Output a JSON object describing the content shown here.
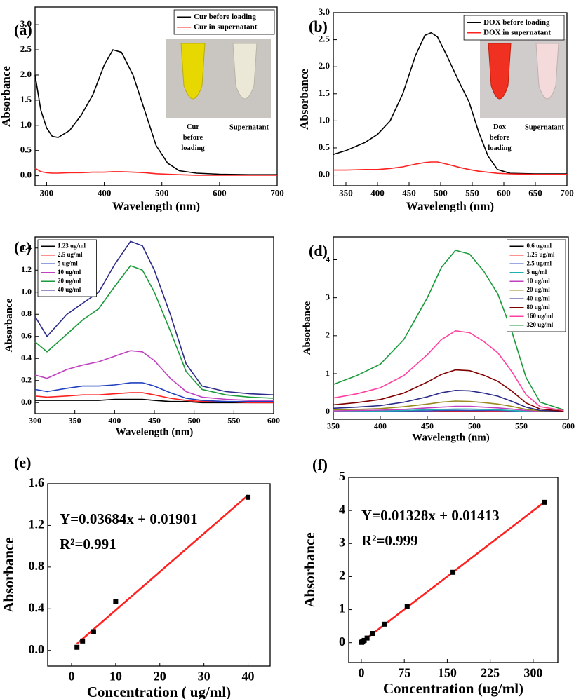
{
  "chart_data": [
    {
      "type": "line",
      "label": "(a)",
      "xlabel": "Wavelength (nm)",
      "ylabel": "Absorbance",
      "xlim": [
        280,
        700
      ],
      "ylim": [
        -0.2,
        3.35
      ],
      "xticks": [
        300,
        400,
        500,
        600,
        700
      ],
      "yticks": [
        {
          "value": 0,
          "label": "0.0"
        },
        {
          "value": 0.5,
          "label": "0.5"
        },
        {
          "value": 1,
          "label": "1.0"
        },
        {
          "value": 1.5,
          "label": "1.5"
        },
        {
          "value": 2,
          "label": "2.0"
        },
        {
          "value": 2.5,
          "label": "2.5"
        },
        {
          "value": 3,
          "label": "3.0"
        }
      ],
      "legend": "upper right",
      "x": [
        280,
        290,
        300,
        310,
        320,
        340,
        360,
        380,
        400,
        415,
        430,
        450,
        470,
        490,
        510,
        530,
        560,
        600,
        650,
        700
      ],
      "series": [
        {
          "name": "Cur before loading",
          "color": "#000000",
          "values": [
            2.0,
            1.3,
            0.95,
            0.78,
            0.76,
            0.9,
            1.2,
            1.6,
            2.2,
            2.5,
            2.45,
            2.0,
            1.3,
            0.6,
            0.25,
            0.1,
            0.05,
            0.03,
            0.02,
            0.02
          ]
        },
        {
          "name": "Cur in supernatant",
          "color": "#ff2020",
          "values": [
            0.15,
            0.08,
            0.06,
            0.05,
            0.05,
            0.06,
            0.06,
            0.07,
            0.07,
            0.08,
            0.08,
            0.07,
            0.06,
            0.04,
            0.03,
            0.02,
            0.01,
            0.01,
            0.01,
            0.01
          ]
        }
      ],
      "inset_labels": [
        "Cur before loading",
        "Supernatant"
      ]
    },
    {
      "type": "line",
      "label": "(b)",
      "xlabel": "Wavelength (nm)",
      "ylabel": "Absorbance",
      "xlim": [
        330,
        700
      ],
      "ylim": [
        -0.2,
        3.0
      ],
      "xticks": [
        350,
        400,
        450,
        500,
        550,
        600,
        650,
        700
      ],
      "yticks": [
        {
          "value": 0,
          "label": "0.0"
        },
        {
          "value": 0.5,
          "label": "0.5"
        },
        {
          "value": 1,
          "label": "1.0"
        },
        {
          "value": 1.5,
          "label": "1.5"
        },
        {
          "value": 2,
          "label": "2.0"
        },
        {
          "value": 2.5,
          "label": "2.5"
        },
        {
          "value": 3,
          "label": "3.0"
        }
      ],
      "legend": "upper right",
      "x": [
        330,
        350,
        380,
        400,
        420,
        440,
        460,
        475,
        485,
        495,
        510,
        530,
        545,
        560,
        575,
        590,
        610,
        650,
        700
      ],
      "series": [
        {
          "name": "DOX before loading",
          "color": "#000000",
          "values": [
            0.38,
            0.45,
            0.6,
            0.75,
            1.0,
            1.5,
            2.2,
            2.58,
            2.63,
            2.55,
            2.2,
            1.7,
            1.35,
            0.8,
            0.35,
            0.1,
            0.03,
            0.02,
            0.02
          ]
        },
        {
          "name": "DOX in supernatant",
          "color": "#ff2020",
          "values": [
            0.09,
            0.09,
            0.1,
            0.1,
            0.12,
            0.15,
            0.2,
            0.23,
            0.24,
            0.24,
            0.2,
            0.14,
            0.1,
            0.07,
            0.05,
            0.03,
            0.02,
            0.01,
            0.01
          ]
        }
      ],
      "inset_labels": [
        "Dox before loading",
        "Supernatant"
      ]
    },
    {
      "type": "line",
      "label": "(c)",
      "xlabel": "Wavelength (nm)",
      "ylabel": "Absorbance",
      "xlim": [
        300,
        600
      ],
      "ylim": [
        -0.1,
        1.5
      ],
      "xticks": [
        300,
        350,
        400,
        450,
        500,
        550,
        600
      ],
      "yticks": [
        {
          "value": 0,
          "label": "0.0"
        },
        {
          "value": 0.2,
          "label": "0.2"
        },
        {
          "value": 0.4,
          "label": "0.4"
        },
        {
          "value": 0.6,
          "label": "0.6"
        },
        {
          "value": 0.8,
          "label": "0.8"
        },
        {
          "value": 1,
          "label": "1.0"
        },
        {
          "value": 1.2,
          "label": "1.2"
        },
        {
          "value": 1.4,
          "label": "1.4"
        }
      ],
      "legend": "upper left",
      "x": [
        300,
        315,
        340,
        360,
        380,
        400,
        420,
        435,
        450,
        470,
        490,
        510,
        540,
        570,
        600
      ],
      "series": [
        {
          "name": "1.23 ug/ml",
          "color": "#000000",
          "values": [
            0.02,
            0.02,
            0.02,
            0.02,
            0.02,
            0.03,
            0.03,
            0.03,
            0.02,
            0.01,
            0.01,
            0,
            0,
            0,
            0
          ]
        },
        {
          "name": "2.5 ug/ml",
          "color": "#ff2020",
          "values": [
            0.06,
            0.05,
            0.06,
            0.07,
            0.07,
            0.08,
            0.09,
            0.09,
            0.07,
            0.04,
            0.02,
            0.01,
            0.01,
            0,
            0
          ]
        },
        {
          "name": "5 ug/ml",
          "color": "#2040c0",
          "values": [
            0.12,
            0.1,
            0.13,
            0.15,
            0.15,
            0.16,
            0.18,
            0.18,
            0.15,
            0.09,
            0.04,
            0.02,
            0.01,
            0.01,
            0.01
          ]
        },
        {
          "name": "10 ug/ml",
          "color": "#c040c0",
          "values": [
            0.25,
            0.22,
            0.3,
            0.34,
            0.37,
            0.42,
            0.47,
            0.46,
            0.38,
            0.22,
            0.1,
            0.05,
            0.03,
            0.02,
            0.02
          ]
        },
        {
          "name": "20 ug/ml",
          "color": "#1a9a3a",
          "values": [
            0.55,
            0.46,
            0.62,
            0.75,
            0.85,
            1.05,
            1.24,
            1.2,
            1.0,
            0.65,
            0.28,
            0.12,
            0.07,
            0.05,
            0.04
          ]
        },
        {
          "name": "40 ug/ml",
          "color": "#2a2a8a",
          "values": [
            0.78,
            0.6,
            0.8,
            0.9,
            1.0,
            1.25,
            1.46,
            1.42,
            1.2,
            0.8,
            0.35,
            0.15,
            0.1,
            0.08,
            0.07
          ]
        }
      ]
    },
    {
      "type": "line",
      "label": "(d)",
      "xlabel": "Wavelength (nm)",
      "ylabel": "Absorbance",
      "xlim": [
        350,
        600
      ],
      "ylim": [
        -0.2,
        4.6
      ],
      "xticks": [
        350,
        400,
        450,
        500,
        550,
        600
      ],
      "yticks": [
        0,
        1,
        2,
        3,
        4
      ],
      "legend": "upper right",
      "x": [
        350,
        375,
        400,
        425,
        450,
        465,
        480,
        495,
        510,
        525,
        540,
        555,
        570,
        595
      ],
      "series": [
        {
          "name": "0.6 ug/ml",
          "color": "#000000",
          "values": [
            0,
            0,
            0,
            0,
            0.01,
            0.01,
            0.01,
            0.01,
            0.01,
            0.01,
            0,
            0,
            0,
            0
          ]
        },
        {
          "name": "1.25 ug/ml",
          "color": "#ff2020",
          "values": [
            0,
            0,
            0.01,
            0.01,
            0.01,
            0.02,
            0.02,
            0.02,
            0.02,
            0.01,
            0.01,
            0,
            0,
            0
          ]
        },
        {
          "name": "2.5 ug/ml",
          "color": "#3050c0",
          "values": [
            0.01,
            0.01,
            0.01,
            0.02,
            0.02,
            0.03,
            0.035,
            0.03,
            0.03,
            0.03,
            0.02,
            0.01,
            0,
            0
          ]
        },
        {
          "name": "5 ug/ml",
          "color": "#20b0b0",
          "values": [
            0.01,
            0.02,
            0.02,
            0.03,
            0.05,
            0.06,
            0.07,
            0.07,
            0.06,
            0.05,
            0.03,
            0.01,
            0,
            0
          ]
        },
        {
          "name": "10 ug/ml",
          "color": "#c040c0",
          "values": [
            0.02,
            0.03,
            0.04,
            0.06,
            0.1,
            0.12,
            0.14,
            0.14,
            0.12,
            0.1,
            0.07,
            0.03,
            0.01,
            0
          ]
        },
        {
          "name": "20 ug/ml",
          "color": "#9a8a20",
          "values": [
            0.05,
            0.06,
            0.08,
            0.13,
            0.2,
            0.25,
            0.28,
            0.27,
            0.24,
            0.2,
            0.14,
            0.06,
            0.02,
            0
          ]
        },
        {
          "name": "40 ug/ml",
          "color": "#2a2a8a",
          "values": [
            0.09,
            0.12,
            0.16,
            0.25,
            0.39,
            0.5,
            0.56,
            0.55,
            0.49,
            0.41,
            0.27,
            0.12,
            0.03,
            0.01
          ]
        },
        {
          "name": "80 ug/ml",
          "color": "#800000",
          "values": [
            0.18,
            0.24,
            0.32,
            0.49,
            0.78,
            0.98,
            1.1,
            1.08,
            0.96,
            0.8,
            0.54,
            0.23,
            0.07,
            0.01
          ]
        },
        {
          "name": "160 ug/ml",
          "color": "#ff40a0",
          "values": [
            0.36,
            0.47,
            0.63,
            0.95,
            1.5,
            1.9,
            2.13,
            2.08,
            1.85,
            1.55,
            1.05,
            0.45,
            0.13,
            0.03
          ]
        },
        {
          "name": "320 ug/ml",
          "color": "#1a9a3a",
          "values": [
            0.72,
            0.95,
            1.25,
            1.9,
            3.0,
            3.8,
            4.25,
            4.15,
            3.7,
            3.1,
            2.1,
            0.9,
            0.25,
            0.05
          ]
        }
      ]
    },
    {
      "type": "scatter",
      "label": "(e)",
      "xlabel": "Concentration ( ug/ml)",
      "ylabel": "Absorbance",
      "xlim": [
        -5.4,
        45
      ],
      "ylim": [
        -0.15,
        1.6
      ],
      "xticks": [
        0,
        10,
        20,
        30,
        40
      ],
      "yticks": [
        {
          "value": 0,
          "label": "0.0"
        },
        {
          "value": 0.4,
          "label": "0.4"
        },
        {
          "value": 0.8,
          "label": "0.8"
        },
        {
          "value": 1.2,
          "label": "1.2"
        },
        {
          "value": 1.6,
          "label": "1.6"
        }
      ],
      "x": [
        1.23,
        2.5,
        5,
        10,
        40
      ],
      "values": [
        0.03,
        0.09,
        0.18,
        0.47,
        1.47
      ],
      "color": "#000000",
      "fit": {
        "color": "#ff2020",
        "x": [
          1.23,
          40
        ],
        "values": [
          0.064,
          1.49
        ]
      },
      "equation": "Y=0.03684x + 0.01901",
      "r_squared": "R²=0.991"
    },
    {
      "type": "scatter",
      "label": "(f)",
      "xlabel": "Concentration (ug/ml)",
      "ylabel": "Absorbance",
      "xlim": [
        -22,
        343
      ],
      "ylim": [
        -0.6,
        5
      ],
      "xticks": [
        0,
        75,
        150,
        225,
        300
      ],
      "yticks": [
        0,
        1,
        2,
        3,
        4,
        5
      ],
      "x": [
        0.6,
        1.25,
        2.5,
        5,
        10,
        20,
        40,
        80,
        160,
        320
      ],
      "values": [
        0.01,
        0.02,
        0.035,
        0.07,
        0.14,
        0.28,
        0.56,
        1.1,
        2.13,
        4.25
      ],
      "color": "#000000",
      "fit": {
        "color": "#ff2020",
        "x": [
          0.6,
          320
        ],
        "values": [
          0.02,
          4.26
        ]
      },
      "equation": "Y=0.01328x + 0.01413",
      "r_squared": "R²=0.999"
    }
  ]
}
